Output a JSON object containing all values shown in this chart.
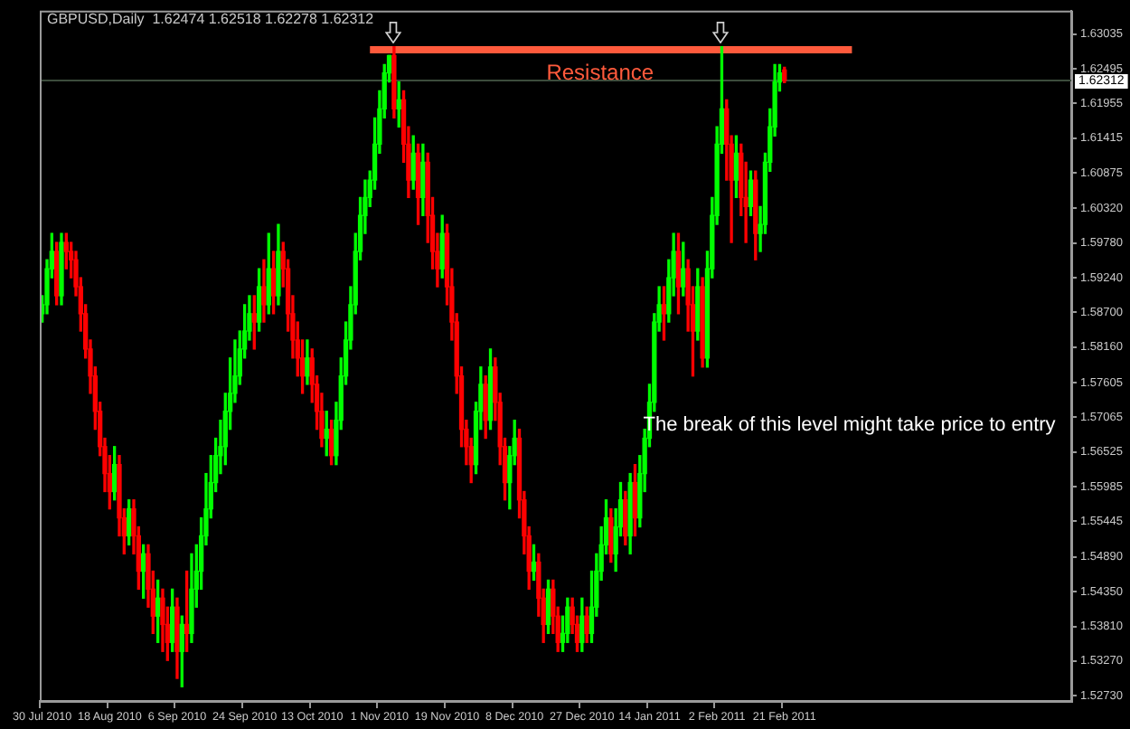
{
  "chart_data": {
    "type": "candlestick",
    "title": "GBPUSD,Daily  1.62474 1.62518 1.62278 1.62312",
    "categories": [
      "30 Jul 2010",
      null,
      null,
      null,
      null,
      null,
      null,
      null,
      null,
      null,
      null,
      null,
      null,
      null,
      "18 Aug 2010",
      null,
      null,
      null,
      null,
      null,
      null,
      null,
      null,
      null,
      null,
      null,
      null,
      null,
      "6 Sep 2010",
      null,
      null,
      null,
      null,
      null,
      null,
      null,
      null,
      null,
      null,
      null,
      null,
      null,
      "24 Sep 2010",
      null,
      null,
      null,
      null,
      null,
      null,
      null,
      null,
      null,
      null,
      null,
      null,
      null,
      "13 Oct 2010",
      null,
      null,
      null,
      null,
      null,
      null,
      null,
      null,
      null,
      null,
      null,
      null,
      null,
      "1 Nov 2010",
      null,
      null,
      null,
      null,
      null,
      null,
      null,
      null,
      null,
      null,
      null,
      null,
      null,
      "19 Nov 2010",
      null,
      null,
      null,
      null,
      null,
      null,
      null,
      null,
      null,
      null,
      null,
      null,
      null,
      "8 Dec 2010",
      null,
      null,
      null,
      null,
      null,
      null,
      null,
      null,
      null,
      null,
      null,
      null,
      null,
      "27 Dec 2010",
      null,
      null,
      null,
      null,
      null,
      null,
      null,
      null,
      null,
      null,
      null,
      null,
      null,
      "14 Jan 2011",
      null,
      null,
      null,
      null,
      null,
      null,
      null,
      null,
      null,
      null,
      null,
      null,
      null,
      "2 Feb 2011",
      null,
      null,
      null,
      null,
      null,
      null,
      null,
      null,
      null,
      null,
      null,
      null,
      null,
      "21 Feb 2011",
      null,
      null,
      null,
      null,
      null,
      null,
      null,
      null,
      null,
      null,
      null,
      null,
      null,
      null,
      null,
      null,
      null,
      null,
      null,
      null,
      null,
      null,
      null,
      null,
      null,
      null,
      null,
      null,
      null,
      null,
      null,
      null,
      null,
      null,
      null,
      null,
      null,
      null,
      null,
      null,
      null,
      null,
      null,
      null,
      null,
      null,
      null,
      null,
      null,
      null,
      null,
      null,
      null,
      null,
      null,
      null,
      null,
      null,
      null
    ],
    "ohlc": [
      [
        1.5868,
        1.5896,
        1.5855,
        1.5882
      ],
      [
        1.5882,
        1.5952,
        1.5868,
        1.5938
      ],
      [
        1.5938,
        1.5993,
        1.5924,
        1.5965
      ],
      [
        1.5965,
        1.5979,
        1.5882,
        1.5896
      ],
      [
        1.5896,
        1.5993,
        1.5882,
        1.5979
      ],
      [
        1.5979,
        1.5993,
        1.5938,
        1.5965
      ],
      [
        1.5965,
        1.5979,
        1.5924,
        1.5952
      ],
      [
        1.5952,
        1.5965,
        1.5896,
        1.591
      ],
      [
        1.591,
        1.5924,
        1.5841,
        1.5868
      ],
      [
        1.5868,
        1.5882,
        1.5799,
        1.5813
      ],
      [
        1.5813,
        1.5827,
        1.5744,
        1.5771
      ],
      [
        1.5771,
        1.5785,
        1.5688,
        1.5716
      ],
      [
        1.5716,
        1.573,
        1.5647,
        1.5661
      ],
      [
        1.5661,
        1.5674,
        1.5591,
        1.5619
      ],
      [
        1.5619,
        1.5647,
        1.5564,
        1.5591
      ],
      [
        1.5591,
        1.5661,
        1.5578,
        1.5633
      ],
      [
        1.5633,
        1.5647,
        1.5522,
        1.555
      ],
      [
        1.555,
        1.5564,
        1.5494,
        1.5522
      ],
      [
        1.5522,
        1.5578,
        1.5508,
        1.5564
      ],
      [
        1.5564,
        1.5578,
        1.5494,
        1.5522
      ],
      [
        1.5522,
        1.5536,
        1.5439,
        1.5467
      ],
      [
        1.5467,
        1.5508,
        1.5425,
        1.5494
      ],
      [
        1.5494,
        1.5508,
        1.5411,
        1.5439
      ],
      [
        1.5439,
        1.5467,
        1.537,
        1.5397
      ],
      [
        1.5397,
        1.5453,
        1.5356,
        1.5425
      ],
      [
        1.5425,
        1.5439,
        1.5342,
        1.5384
      ],
      [
        1.5384,
        1.5411,
        1.5328,
        1.5356
      ],
      [
        1.5356,
        1.5439,
        1.5342,
        1.5411
      ],
      [
        1.5411,
        1.5425,
        1.53,
        1.5342
      ],
      [
        1.5342,
        1.5397,
        1.5287,
        1.5384
      ],
      [
        1.5384,
        1.5467,
        1.5342,
        1.537
      ],
      [
        1.537,
        1.5494,
        1.5356,
        1.5439
      ],
      [
        1.5439,
        1.5508,
        1.5411,
        1.5467
      ],
      [
        1.5467,
        1.555,
        1.5439,
        1.5522
      ],
      [
        1.5522,
        1.5619,
        1.5508,
        1.5564
      ],
      [
        1.5564,
        1.5647,
        1.555,
        1.5605
      ],
      [
        1.5605,
        1.5674,
        1.5591,
        1.5647
      ],
      [
        1.5647,
        1.5702,
        1.5619,
        1.5661
      ],
      [
        1.5661,
        1.5744,
        1.5633,
        1.5716
      ],
      [
        1.5716,
        1.5799,
        1.5688,
        1.5744
      ],
      [
        1.5744,
        1.5827,
        1.573,
        1.5771
      ],
      [
        1.5771,
        1.5841,
        1.5758,
        1.5813
      ],
      [
        1.5813,
        1.5882,
        1.5799,
        1.5841
      ],
      [
        1.5841,
        1.5896,
        1.5827,
        1.5868
      ],
      [
        1.5868,
        1.5896,
        1.5813,
        1.5855
      ],
      [
        1.5855,
        1.5938,
        1.5841,
        1.591
      ],
      [
        1.591,
        1.5952,
        1.5855,
        1.5882
      ],
      [
        1.5882,
        1.5993,
        1.5868,
        1.5938
      ],
      [
        1.5938,
        1.5965,
        1.5868,
        1.5896
      ],
      [
        1.5896,
        1.6007,
        1.5882,
        1.5965
      ],
      [
        1.5965,
        1.5979,
        1.591,
        1.5938
      ],
      [
        1.5938,
        1.5952,
        1.5841,
        1.5868
      ],
      [
        1.5868,
        1.5896,
        1.5799,
        1.5827
      ],
      [
        1.5827,
        1.5855,
        1.5771,
        1.5799
      ],
      [
        1.5799,
        1.5827,
        1.5744,
        1.5771
      ],
      [
        1.5771,
        1.5827,
        1.5758,
        1.5799
      ],
      [
        1.5799,
        1.5813,
        1.573,
        1.5758
      ],
      [
        1.5758,
        1.5771,
        1.5688,
        1.5716
      ],
      [
        1.5716,
        1.5744,
        1.5661,
        1.5674
      ],
      [
        1.5674,
        1.5716,
        1.5647,
        1.5688
      ],
      [
        1.5688,
        1.5702,
        1.5633,
        1.5647
      ],
      [
        1.5647,
        1.573,
        1.5633,
        1.5702
      ],
      [
        1.5702,
        1.5799,
        1.5688,
        1.5771
      ],
      [
        1.5771,
        1.5855,
        1.5758,
        1.5827
      ],
      [
        1.5827,
        1.591,
        1.5813,
        1.5882
      ],
      [
        1.5882,
        1.5993,
        1.5868,
        1.5965
      ],
      [
        1.5965,
        1.6049,
        1.5952,
        1.6021
      ],
      [
        1.6021,
        1.6076,
        1.5993,
        1.6049
      ],
      [
        1.6049,
        1.609,
        1.6035,
        1.6076
      ],
      [
        1.6076,
        1.6173,
        1.6062,
        1.6132
      ],
      [
        1.6132,
        1.6215,
        1.6118,
        1.6187
      ],
      [
        1.6187,
        1.6256,
        1.6173,
        1.6243
      ],
      [
        1.6243,
        1.627,
        1.6229,
        1.627
      ],
      [
        1.627,
        1.6284,
        1.6173,
        1.6187
      ],
      [
        1.6187,
        1.6229,
        1.6159,
        1.6201
      ],
      [
        1.6201,
        1.6215,
        1.6104,
        1.6132
      ],
      [
        1.6132,
        1.6159,
        1.6049,
        1.6076
      ],
      [
        1.6076,
        1.6145,
        1.6062,
        1.6118
      ],
      [
        1.6118,
        1.6132,
        1.6007,
        1.6049
      ],
      [
        1.6049,
        1.6132,
        1.6021,
        1.6104
      ],
      [
        1.6104,
        1.6118,
        1.5979,
        1.6021
      ],
      [
        1.6021,
        1.6049,
        1.5938,
        1.5965
      ],
      [
        1.5965,
        1.5993,
        1.591,
        1.5938
      ],
      [
        1.5938,
        1.6021,
        1.5924,
        1.5993
      ],
      [
        1.5993,
        1.6007,
        1.5882,
        1.591
      ],
      [
        1.591,
        1.5938,
        1.5827,
        1.5855
      ],
      [
        1.5855,
        1.5868,
        1.5744,
        1.5771
      ],
      [
        1.5771,
        1.5785,
        1.5661,
        1.5688
      ],
      [
        1.5688,
        1.5702,
        1.5633,
        1.5661
      ],
      [
        1.5661,
        1.5674,
        1.5605,
        1.5633
      ],
      [
        1.5633,
        1.573,
        1.5619,
        1.5716
      ],
      [
        1.5716,
        1.5785,
        1.5688,
        1.5758
      ],
      [
        1.5758,
        1.5771,
        1.5674,
        1.5702
      ],
      [
        1.5702,
        1.5813,
        1.5688,
        1.5785
      ],
      [
        1.5785,
        1.5799,
        1.5702,
        1.573
      ],
      [
        1.573,
        1.5744,
        1.5633,
        1.5661
      ],
      [
        1.5661,
        1.5674,
        1.5578,
        1.5605
      ],
      [
        1.5605,
        1.5661,
        1.5564,
        1.5647
      ],
      [
        1.5647,
        1.5702,
        1.5633,
        1.5674
      ],
      [
        1.5674,
        1.5688,
        1.555,
        1.5578
      ],
      [
        1.5578,
        1.5591,
        1.5494,
        1.5522
      ],
      [
        1.5522,
        1.5536,
        1.5439,
        1.5467
      ],
      [
        1.5467,
        1.5508,
        1.5453,
        1.5481
      ],
      [
        1.5481,
        1.5494,
        1.5397,
        1.5425
      ],
      [
        1.5425,
        1.5439,
        1.5356,
        1.5384
      ],
      [
        1.5384,
        1.5453,
        1.537,
        1.5439
      ],
      [
        1.5439,
        1.5453,
        1.537,
        1.5397
      ],
      [
        1.5397,
        1.5411,
        1.5342,
        1.5356
      ],
      [
        1.5356,
        1.5397,
        1.5342,
        1.537
      ],
      [
        1.537,
        1.5425,
        1.5356,
        1.5411
      ],
      [
        1.5411,
        1.5425,
        1.537,
        1.5384
      ],
      [
        1.5384,
        1.5397,
        1.5342,
        1.5356
      ],
      [
        1.5356,
        1.5425,
        1.5342,
        1.5397
      ],
      [
        1.5397,
        1.5411,
        1.5356,
        1.537
      ],
      [
        1.537,
        1.5467,
        1.5356,
        1.5411
      ],
      [
        1.5411,
        1.5494,
        1.5397,
        1.5467
      ],
      [
        1.5467,
        1.5536,
        1.5453,
        1.5508
      ],
      [
        1.5508,
        1.5578,
        1.5494,
        1.555
      ],
      [
        1.555,
        1.5564,
        1.5481,
        1.5494
      ],
      [
        1.5494,
        1.5564,
        1.5467,
        1.5536
      ],
      [
        1.5536,
        1.5605,
        1.5522,
        1.5578
      ],
      [
        1.5578,
        1.5591,
        1.5508,
        1.5522
      ],
      [
        1.5522,
        1.5619,
        1.5494,
        1.5605
      ],
      [
        1.5605,
        1.5633,
        1.5522,
        1.555
      ],
      [
        1.555,
        1.5647,
        1.5536,
        1.5619
      ],
      [
        1.5619,
        1.5688,
        1.5591,
        1.5674
      ],
      [
        1.5674,
        1.5758,
        1.5661,
        1.573
      ],
      [
        1.573,
        1.5868,
        1.5716,
        1.5855
      ],
      [
        1.5855,
        1.591,
        1.5841,
        1.5882
      ],
      [
        1.5882,
        1.591,
        1.5827,
        1.5868
      ],
      [
        1.5868,
        1.5952,
        1.5855,
        1.5924
      ],
      [
        1.5924,
        1.5993,
        1.5896,
        1.5965
      ],
      [
        1.5965,
        1.5993,
        1.5868,
        1.591
      ],
      [
        1.591,
        1.5979,
        1.5896,
        1.5938
      ],
      [
        1.5938,
        1.5952,
        1.5841,
        1.5882
      ],
      [
        1.5882,
        1.591,
        1.5771,
        1.5841
      ],
      [
        1.5841,
        1.5938,
        1.5827,
        1.591
      ],
      [
        1.591,
        1.5924,
        1.5785,
        1.5799
      ],
      [
        1.5799,
        1.5965,
        1.5785,
        1.5938
      ],
      [
        1.5938,
        1.6049,
        1.5924,
        1.6021
      ],
      [
        1.6021,
        1.6159,
        1.6007,
        1.6132
      ],
      [
        1.6132,
        1.6284,
        1.6118,
        1.6187
      ],
      [
        1.6187,
        1.6201,
        1.6076,
        1.6132
      ],
      [
        1.6132,
        1.6145,
        1.5979,
        1.6076
      ],
      [
        1.6076,
        1.6145,
        1.6049,
        1.6118
      ],
      [
        1.6118,
        1.6132,
        1.6021,
        1.6049
      ],
      [
        1.6049,
        1.6104,
        1.5979,
        1.6035
      ],
      [
        1.6035,
        1.609,
        1.6021,
        1.6076
      ],
      [
        1.6076,
        1.609,
        1.5952,
        1.5993
      ],
      [
        1.5993,
        1.6035,
        1.5965,
        1.6007
      ],
      [
        1.6007,
        1.6118,
        1.5993,
        1.6104
      ],
      [
        1.6104,
        1.6187,
        1.609,
        1.6159
      ],
      [
        1.6159,
        1.6256,
        1.6145,
        1.6229
      ],
      [
        1.6229,
        1.6256,
        1.6215,
        1.6243
      ],
      [
        1.62474,
        1.62518,
        1.62278,
        1.62312
      ],
      null,
      null,
      null,
      null,
      null,
      null,
      null,
      null,
      null,
      null,
      null,
      null,
      null,
      null,
      null,
      null,
      null,
      null,
      null,
      null,
      null,
      null,
      null,
      null,
      null,
      null,
      null,
      null,
      null,
      null,
      null,
      null,
      null,
      null,
      null,
      null,
      null,
      null,
      null,
      null,
      null,
      null,
      null,
      null,
      null,
      null,
      null,
      null,
      null,
      null,
      null,
      null,
      null,
      null,
      null,
      null,
      null,
      null,
      null
    ],
    "colors": [
      "#00ff00",
      "#00ff00",
      "#00ff00",
      "#ff0000",
      "#00ff00",
      "#ff0000",
      "#ff0000",
      "#ff0000",
      "#ff0000",
      "#ff0000",
      "#ff0000",
      "#ff0000",
      "#ff0000",
      "#ff0000",
      "#ff0000",
      "#00ff00",
      "#ff0000",
      "#ff0000",
      "#00ff00",
      "#ff0000",
      "#ff0000",
      "#00ff00",
      "#ff0000",
      "#ff0000",
      "#00ff00",
      "#ff0000",
      "#ff0000",
      "#00ff00",
      "#ff0000",
      "#00ff00",
      "#ff0000",
      "#00ff00",
      "#00ff00",
      "#00ff00",
      "#00ff00",
      "#00ff00",
      "#00ff00",
      "#00ff00",
      "#00ff00",
      "#00ff00",
      "#00ff00",
      "#00ff00",
      "#00ff00",
      "#00ff00",
      "#ff0000",
      "#00ff00",
      "#ff0000",
      "#00ff00",
      "#ff0000",
      "#00ff00",
      "#ff0000",
      "#ff0000",
      "#ff0000",
      "#ff0000",
      "#ff0000",
      "#00ff00",
      "#ff0000",
      "#ff0000",
      "#ff0000",
      "#00ff00",
      "#ff0000",
      "#00ff00",
      "#00ff00",
      "#00ff00",
      "#00ff00",
      "#00ff00",
      "#00ff00",
      "#00ff00",
      "#00ff00",
      "#00ff00",
      "#00ff00",
      "#00ff00",
      "#00ff00",
      "#ff0000",
      "#00ff00",
      "#ff0000",
      "#ff0000",
      "#00ff00",
      "#ff0000",
      "#00ff00",
      "#ff0000",
      "#ff0000",
      "#ff0000",
      "#00ff00",
      "#ff0000",
      "#ff0000",
      "#ff0000",
      "#ff0000",
      "#ff0000",
      "#ff0000",
      "#00ff00",
      "#00ff00",
      "#ff0000",
      "#00ff00",
      "#ff0000",
      "#ff0000",
      "#ff0000",
      "#00ff00",
      "#00ff00",
      "#ff0000",
      "#ff0000",
      "#ff0000",
      "#00ff00",
      "#ff0000",
      "#ff0000",
      "#00ff00",
      "#ff0000",
      "#ff0000",
      "#00ff00",
      "#00ff00",
      "#ff0000",
      "#ff0000",
      "#00ff00",
      "#ff0000",
      "#00ff00",
      "#00ff00",
      "#00ff00",
      "#00ff00",
      "#ff0000",
      "#00ff00",
      "#00ff00",
      "#ff0000",
      "#00ff00",
      "#ff0000",
      "#00ff00",
      "#00ff00",
      "#00ff00",
      "#00ff00",
      "#00ff00",
      "#ff0000",
      "#00ff00",
      "#00ff00",
      "#ff0000",
      "#00ff00",
      "#ff0000",
      "#ff0000",
      "#00ff00",
      "#ff0000",
      "#00ff00",
      "#00ff00",
      "#00ff00",
      "#00ff00",
      "#ff0000",
      "#ff0000",
      "#00ff00",
      "#ff0000",
      "#ff0000",
      "#00ff00",
      "#ff0000",
      "#00ff00",
      "#00ff00",
      "#00ff00",
      "#00ff00",
      "#00ff00",
      "#ff0000",
      null,
      null,
      null,
      null,
      null,
      null,
      null,
      null,
      null,
      null,
      null,
      null,
      null,
      null,
      null,
      null,
      null,
      null,
      null,
      null,
      null,
      null,
      null,
      null,
      null,
      null,
      null,
      null,
      null,
      null,
      null,
      null,
      null,
      null,
      null,
      null,
      null,
      null,
      null,
      null,
      null,
      null,
      null,
      null,
      null,
      null,
      null,
      null,
      null,
      null,
      null,
      null,
      null,
      null,
      null,
      null,
      null,
      null,
      null
    ],
    "series": [
      {
        "type": "line",
        "name": "Resistance",
        "color": "#ff5a3c",
        "values": [
          null,
          null,
          null,
          null,
          null,
          null,
          null,
          null,
          null,
          null,
          null,
          null,
          null,
          null,
          null,
          null,
          null,
          null,
          null,
          null,
          null,
          null,
          null,
          null,
          null,
          null,
          null,
          null,
          null,
          null,
          null,
          null,
          null,
          null,
          null,
          null,
          null,
          null,
          null,
          null,
          null,
          null,
          null,
          null,
          null,
          null,
          null,
          null,
          null,
          null,
          null,
          null,
          null,
          null,
          null,
          null,
          null,
          null,
          null,
          null,
          null,
          null,
          null,
          null,
          null,
          null,
          null,
          null,
          1.6279,
          null,
          null,
          null,
          null,
          null,
          null,
          null,
          null,
          null,
          null,
          null,
          null,
          null,
          null,
          null,
          null,
          null,
          null,
          null,
          null,
          null,
          null,
          null,
          null,
          null,
          null,
          null,
          null,
          null,
          null,
          null,
          null,
          null,
          null,
          null,
          null,
          null,
          null,
          null,
          null,
          null,
          null,
          null,
          null,
          null,
          null,
          null,
          null,
          null,
          null,
          null,
          null,
          null,
          null,
          null,
          null,
          null,
          null,
          null,
          null,
          null,
          null,
          null,
          null,
          null,
          null,
          null,
          null,
          null,
          null,
          null,
          null,
          null,
          null,
          null,
          null,
          null,
          null,
          null,
          null,
          null,
          null,
          null,
          null,
          null,
          null,
          null,
          null,
          null,
          null,
          null,
          null,
          null,
          null,
          null,
          null,
          null,
          null,
          null,
          1.6279,
          null,
          null,
          null,
          null,
          null,
          null,
          null,
          null,
          null,
          null,
          null,
          null,
          null,
          null,
          null,
          null,
          null,
          null,
          null,
          null,
          null,
          null,
          null,
          null,
          null,
          null,
          null,
          null,
          null,
          null,
          null,
          null,
          null,
          null,
          null,
          null,
          null,
          null,
          null,
          null,
          null,
          null,
          null,
          null,
          null
        ]
      }
    ],
    "ylim": [
      1.5265,
      1.634
    ],
    "yticks": [
      1.63035,
      1.62495,
      1.61955,
      1.61415,
      1.60875,
      {
        "value": 1.6032,
        "label": "1.60320"
      },
      {
        "value": 1.5978,
        "label": "1.59780"
      },
      {
        "value": 1.5924,
        "label": "1.59240"
      },
      {
        "value": 1.587,
        "label": "1.58700"
      },
      {
        "value": 1.5816,
        "label": "1.58160"
      },
      1.57605,
      1.57065,
      1.56525,
      1.55985,
      1.55445,
      {
        "value": 1.5489,
        "label": "1.54890"
      },
      {
        "value": 1.5435,
        "label": "1.54350"
      },
      {
        "value": 1.5381,
        "label": "1.53810"
      },
      {
        "value": 1.5327,
        "label": "1.53270"
      },
      {
        "value": 1.5273,
        "label": "1.52730"
      }
    ],
    "ref_lines": [
      {
        "axis": "y",
        "value": 1.62312,
        "label": "1.62312",
        "color": "#3c4c3c"
      }
    ],
    "annotations": [
      "The break of this level might take price to entry"
    ]
  }
}
